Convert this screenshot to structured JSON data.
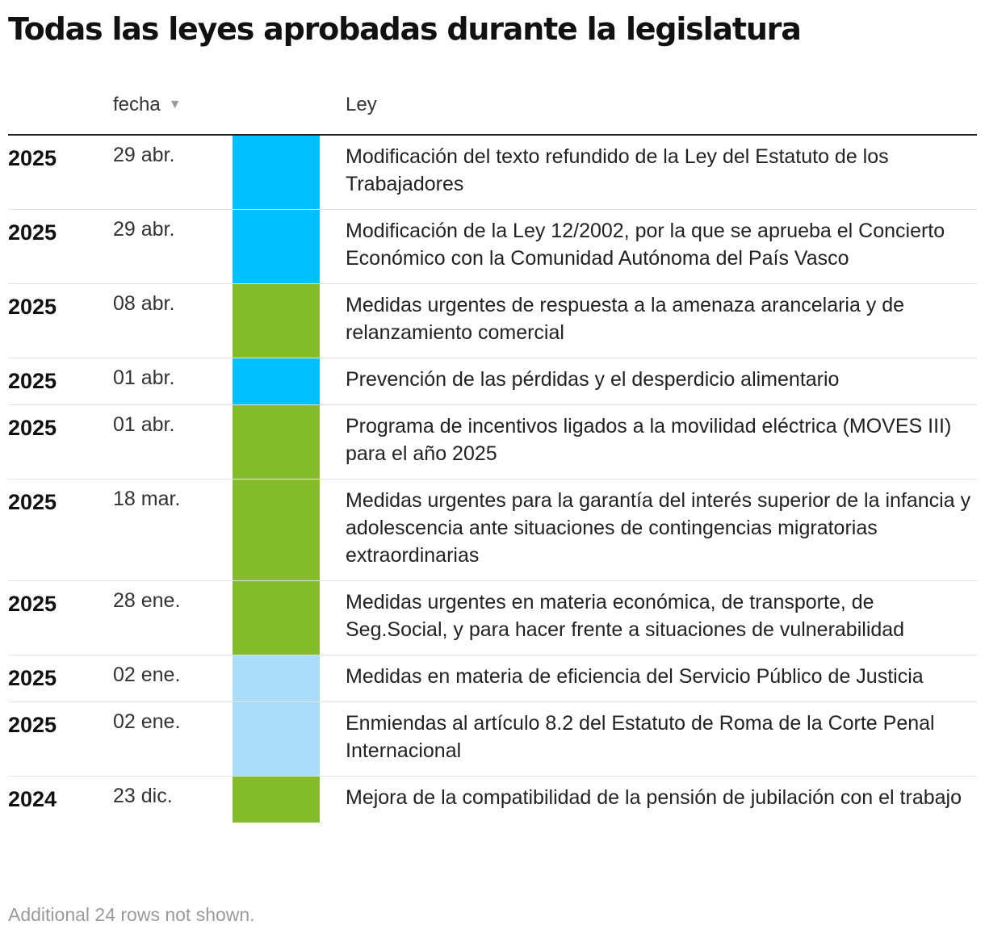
{
  "title": "Todas las leyes aprobadas durante la legislatura",
  "headers": {
    "fecha": "fecha",
    "ley": "Ley",
    "sort_icon": "▼"
  },
  "colors": {
    "cyan": "#00c0ff",
    "green": "#84bc2c",
    "lightblue": "#a8dcf8"
  },
  "chart_data": {
    "type": "table",
    "columns": [
      "",
      "fecha",
      "",
      "Ley"
    ],
    "rows": [
      {
        "year": "2025",
        "date": "29 abr.",
        "color": "#00c0ff",
        "law": "Modificación del texto refundido de la Ley del Estatuto de los Trabajadores"
      },
      {
        "year": "2025",
        "date": "29 abr.",
        "color": "#00c0ff",
        "law": "Modificación de la Ley 12/2002, por la que se aprueba el Concierto Económico con la Comunidad Autónoma del País Vasco"
      },
      {
        "year": "2025",
        "date": "08 abr.",
        "color": "#84bc2c",
        "law": "Medidas urgentes de respuesta a la amenaza arancelaria y de relanzamiento comercial"
      },
      {
        "year": "2025",
        "date": "01 abr.",
        "color": "#00c0ff",
        "law": "Prevención de las pérdidas y el desperdicio alimentario"
      },
      {
        "year": "2025",
        "date": "01 abr.",
        "color": "#84bc2c",
        "law": "Programa de incentivos ligados a la movilidad eléctrica (MOVES III) para el año 2025"
      },
      {
        "year": "2025",
        "date": "18 mar.",
        "color": "#84bc2c",
        "law": "Medidas urgentes para la garantía del interés superior de la infancia y adolescencia ante situaciones de contingencias migratorias extraordinarias"
      },
      {
        "year": "2025",
        "date": "28 ene.",
        "color": "#84bc2c",
        "law": "Medidas urgentes en materia económica, de transporte, de Seg.Social, y para hacer frente a situaciones de vulnerabilidad"
      },
      {
        "year": "2025",
        "date": "02 ene.",
        "color": "#a8dcf8",
        "law": "Medidas en materia de eficiencia del Servicio Público de Justicia"
      },
      {
        "year": "2025",
        "date": "02 ene.",
        "color": "#a8dcf8",
        "law": "Enmiendas al artículo 8.2 del Estatuto de Roma de la Corte Penal Internacional"
      },
      {
        "year": "2024",
        "date": "23 dic.",
        "color": "#84bc2c",
        "law": "Mejora de la compatibilidad de la pensión de jubilación con el trabajo"
      }
    ]
  },
  "footnote": "Additional 24 rows not shown."
}
